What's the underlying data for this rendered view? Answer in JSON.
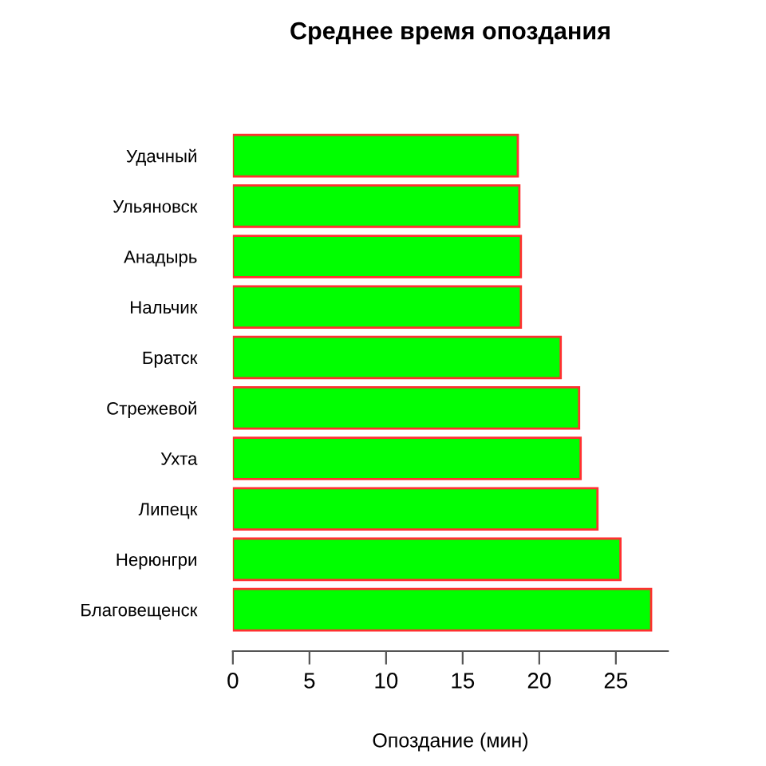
{
  "chart_data": {
    "type": "bar",
    "orientation": "horizontal",
    "title": "Среднее время опоздания",
    "xlabel": "Опоздание (мин)",
    "categories": [
      "Удачный",
      "Ульяновск",
      "Анадырь",
      "Нальчик",
      "Братск",
      "Стрежевой",
      "Ухта",
      "Липецк",
      "Нерюнгри",
      "Благовещенск"
    ],
    "series": [
      {
        "color": "#00ff00",
        "values": [
          18.6,
          18.7,
          18.8,
          18.8,
          21.4,
          22.6,
          22.7,
          23.8,
          25.3,
          27.3
        ]
      }
    ],
    "xlim": [
      0,
      28.4
    ],
    "xticks": [
      0,
      5,
      10,
      15,
      20,
      25
    ],
    "grid": false,
    "legend": false
  }
}
